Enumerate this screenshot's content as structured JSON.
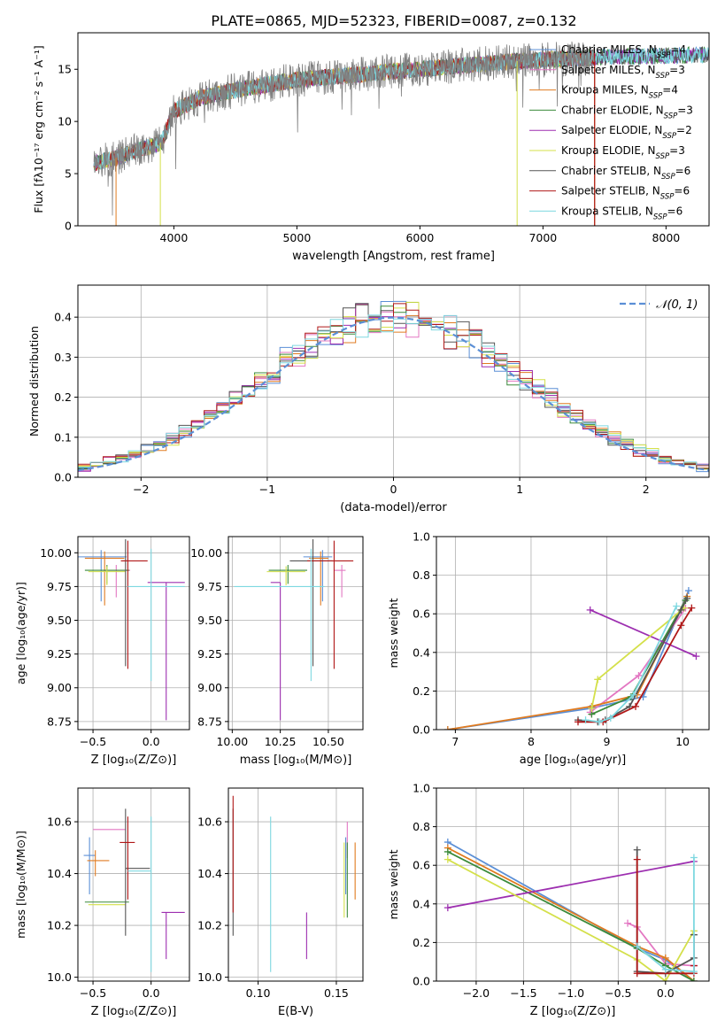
{
  "figure_title": "PLATE=0865, MJD=52323, FIBERID=0087, z=0.132",
  "colors": {
    "Chabrier MILES": "#5b8fd6",
    "Salpeter MILES": "#e377c2",
    "Kroupa MILES": "#e07b20",
    "Chabrier ELODIE": "#3a8a3a",
    "Salpeter ELODIE": "#9d2fb0",
    "Kroupa ELODIE": "#d4e04a",
    "Chabrier STELIB": "#555555",
    "Salpeter STELIB": "#b01818",
    "Kroupa STELIB": "#7ed8e0",
    "normal": "#5b8fd6",
    "grid": "#b0b0b0"
  },
  "chart_data": [
    {
      "id": "spectrum",
      "type": "line",
      "xlabel": "wavelength [Angstrom, rest frame]",
      "ylabel": "Flux [fλ10⁻¹⁷ erg cm⁻² s⁻¹ A⁻¹]",
      "xlim": [
        3220,
        8350
      ],
      "ylim": [
        0,
        18.5
      ],
      "xticks": [
        "4000",
        "5000",
        "6000",
        "7000",
        "8000"
      ],
      "yticks": [
        "0",
        "5",
        "10",
        "15"
      ],
      "grid": false,
      "legend_position": "top-right",
      "legend": [
        "Chabrier MILES, N_SSP=4",
        "Salpeter MILES, N_SSP=3",
        "Kroupa MILES, N_SSP=4",
        "Chabrier ELODIE, N_SSP=3",
        "Salpeter ELODIE, N_SSP=2",
        "Kroupa ELODIE, N_SSP=3",
        "Chabrier STELIB, N_SSP=6",
        "Salpeter STELIB, N_SSP=6",
        "Kroupa STELIB, N_SSP=6"
      ],
      "legend_display": [
        {
          "name": "Chabrier MILES",
          "n": "4"
        },
        {
          "name": "Salpeter MILES",
          "n": "3"
        },
        {
          "name": "Kroupa MILES",
          "n": "4"
        },
        {
          "name": "Chabrier ELODIE",
          "n": "3"
        },
        {
          "name": "Salpeter ELODIE",
          "n": "2"
        },
        {
          "name": "Kroupa ELODIE",
          "n": "3"
        },
        {
          "name": "Chabrier STELIB",
          "n": "6"
        },
        {
          "name": "Salpeter STELIB",
          "n": "6"
        },
        {
          "name": "Kroupa STELIB",
          "n": "6"
        }
      ],
      "continuum_x": [
        3350,
        3500,
        3700,
        3900,
        4000,
        4200,
        4500,
        4800,
        5000,
        5300,
        5600,
        6000,
        6400,
        6800,
        7200,
        7600,
        8000,
        8350
      ],
      "continuum_y": [
        6.0,
        6.4,
        7.2,
        8.0,
        11.0,
        12.2,
        13.0,
        13.6,
        14.0,
        14.3,
        14.6,
        15.0,
        15.4,
        15.8,
        16.0,
        16.2,
        16.3,
        16.4
      ],
      "model_start_x": [
        3350,
        3350,
        3350,
        3350,
        3350,
        3350,
        3350,
        3350,
        3350
      ],
      "model_end_x": [
        8350,
        7420,
        7420,
        8350,
        8350,
        7420,
        8350,
        7420,
        8350
      ],
      "data_start_x": 3350,
      "data_end_x": 7420,
      "cutoffs_x": [
        3530,
        3890,
        6790,
        7420
      ]
    },
    {
      "id": "residuals",
      "type": "line",
      "xlabel": "(data-model)/error",
      "ylabel": "Normed distribution",
      "xlim": [
        -2.5,
        2.5
      ],
      "ylim": [
        0,
        0.48
      ],
      "xticks": [
        "−2",
        "−1",
        "0",
        "1",
        "2"
      ],
      "yticks": [
        "0.0",
        "0.1",
        "0.2",
        "0.3",
        "0.4"
      ],
      "grid": true,
      "legend_position": "top-right",
      "legend": [
        "𝒩(0, 1)"
      ],
      "normal_mean": 0,
      "normal_sigma": 1,
      "hist_bin_width": 0.1
    },
    {
      "id": "age_vs_Z",
      "type": "scatter",
      "xlabel": "Z [log₁₀(Z/Z⊙)]",
      "ylabel": "age  [log₁₀(age/yr)]",
      "xlim": [
        -0.63,
        0.33
      ],
      "ylim": [
        8.69,
        10.12
      ],
      "xticks": [
        "−0.5",
        "0.0"
      ],
      "yticks": [
        "8.75",
        "9.00",
        "9.25",
        "9.50",
        "9.75",
        "10.00"
      ],
      "grid": true,
      "points": [
        {
          "model": "Chabrier MILES",
          "x": -0.43,
          "y": 9.97,
          "xerr": [
            0.22,
            0.22
          ],
          "yerr": [
            0.33,
            0.05
          ]
        },
        {
          "model": "Salpeter MILES",
          "x": -0.3,
          "y": 9.87,
          "xerr": [
            0.12,
            0.12
          ],
          "yerr": [
            0.2,
            0.04
          ]
        },
        {
          "model": "Kroupa MILES",
          "x": -0.4,
          "y": 9.96,
          "xerr": [
            0.17,
            0.17
          ],
          "yerr": [
            0.35,
            0.05
          ]
        },
        {
          "model": "Chabrier ELODIE",
          "x": -0.38,
          "y": 9.87,
          "xerr": [
            0.19,
            0.19
          ],
          "yerr": [
            0.1,
            0.04
          ]
        },
        {
          "model": "Salpeter ELODIE",
          "x": 0.13,
          "y": 9.78,
          "xerr": [
            0.16,
            0.16
          ],
          "yerr": [
            1.02,
            0.0
          ]
        },
        {
          "model": "Kroupa ELODIE",
          "x": -0.38,
          "y": 9.86,
          "xerr": [
            0.16,
            0.16
          ],
          "yerr": [
            0.1,
            0.04
          ]
        },
        {
          "model": "Chabrier STELIB",
          "x": -0.22,
          "y": 9.94,
          "xerr": [
            0.02,
            0.02
          ],
          "yerr": [
            0.78,
            0.16
          ]
        },
        {
          "model": "Salpeter STELIB",
          "x": -0.2,
          "y": 9.94,
          "xerr": [
            0.06,
            0.17
          ],
          "yerr": [
            0.8,
            0.15
          ]
        },
        {
          "model": "Kroupa STELIB",
          "x": 0.0,
          "y": 9.75,
          "xerr": [
            0.2,
            0.29
          ],
          "yerr": [
            0.7,
            0.28
          ]
        }
      ]
    },
    {
      "id": "age_vs_mass",
      "type": "scatter",
      "xlabel": "mass [log₁₀(M/M⊙)]",
      "ylabel": "",
      "xlim": [
        9.98,
        10.68
      ],
      "ylim": [
        8.69,
        10.12
      ],
      "xticks": [
        "10.00",
        "10.25",
        "10.50"
      ],
      "yticks": [
        "8.75",
        "9.00",
        "9.25",
        "9.50",
        "9.75",
        "10.00"
      ],
      "grid": true,
      "points": [
        {
          "model": "Chabrier MILES",
          "x": 10.47,
          "y": 9.97,
          "xerr": [
            0.1,
            0.05
          ],
          "yerr": [
            0.33,
            0.05
          ]
        },
        {
          "model": "Salpeter MILES",
          "x": 10.57,
          "y": 9.87,
          "xerr": [
            0.04,
            0.02
          ],
          "yerr": [
            0.2,
            0.04
          ]
        },
        {
          "model": "Kroupa MILES",
          "x": 10.46,
          "y": 9.96,
          "xerr": [
            0.06,
            0.04
          ],
          "yerr": [
            0.35,
            0.05
          ]
        },
        {
          "model": "Chabrier ELODIE",
          "x": 10.29,
          "y": 9.87,
          "xerr": [
            0.1,
            0.1
          ],
          "yerr": [
            0.1,
            0.04
          ]
        },
        {
          "model": "Salpeter ELODIE",
          "x": 10.25,
          "y": 9.78,
          "xerr": [
            0.05,
            0.0
          ],
          "yerr": [
            1.02,
            0.0
          ]
        },
        {
          "model": "Kroupa ELODIE",
          "x": 10.28,
          "y": 9.86,
          "xerr": [
            0.1,
            0.1
          ],
          "yerr": [
            0.1,
            0.04
          ]
        },
        {
          "model": "Chabrier STELIB",
          "x": 10.42,
          "y": 9.94,
          "xerr": [
            0.12,
            0.1
          ],
          "yerr": [
            0.78,
            0.16
          ]
        },
        {
          "model": "Salpeter STELIB",
          "x": 10.53,
          "y": 9.94,
          "xerr": [
            0.14,
            0.1
          ],
          "yerr": [
            0.8,
            0.15
          ]
        },
        {
          "model": "Kroupa STELIB",
          "x": 10.41,
          "y": 9.75,
          "xerr": [
            0.4,
            0.07
          ],
          "yerr": [
            0.7,
            0.28
          ]
        }
      ]
    },
    {
      "id": "massweight_vs_age",
      "type": "line",
      "xlabel": "age  [log₁₀(age/yr)]",
      "ylabel": "mass weight",
      "xlim": [
        6.75,
        10.35
      ],
      "ylim": [
        0,
        1.0
      ],
      "xticks": [
        "7",
        "8",
        "9",
        "10"
      ],
      "yticks": [
        "0.0",
        "0.2",
        "0.4",
        "0.6",
        "0.8",
        "1.0"
      ],
      "grid": true,
      "series": [
        {
          "name": "Chabrier MILES",
          "x": [
            6.9,
            8.78,
            9.48,
            10.08
          ],
          "y": [
            0.0,
            0.11,
            0.17,
            0.72
          ]
        },
        {
          "name": "Salpeter MILES",
          "x": [
            8.78,
            9.42,
            10.04
          ],
          "y": [
            0.09,
            0.28,
            0.63
          ]
        },
        {
          "name": "Kroupa MILES",
          "x": [
            6.9,
            8.8,
            9.4,
            10.06
          ],
          "y": [
            0.0,
            0.12,
            0.18,
            0.69
          ]
        },
        {
          "name": "Chabrier ELODIE",
          "x": [
            8.8,
            9.32,
            10.04
          ],
          "y": [
            0.08,
            0.17,
            0.67
          ]
        },
        {
          "name": "Salpeter ELODIE",
          "x": [
            8.78,
            10.18
          ],
          "y": [
            0.62,
            0.38
          ]
        },
        {
          "name": "Kroupa ELODIE",
          "x": [
            8.8,
            8.88,
            10.02
          ],
          "y": [
            0.11,
            0.26,
            0.63
          ]
        },
        {
          "name": "Chabrier STELIB",
          "x": [
            8.62,
            8.88,
            8.98,
            9.3,
            9.98,
            10.06
          ],
          "y": [
            0.05,
            0.04,
            0.05,
            0.12,
            0.62,
            0.68
          ]
        },
        {
          "name": "Salpeter STELIB",
          "x": [
            8.62,
            8.95,
            9.38,
            9.98,
            10.12
          ],
          "y": [
            0.04,
            0.04,
            0.12,
            0.54,
            0.63
          ]
        },
        {
          "name": "Kroupa STELIB",
          "x": [
            8.72,
            8.9,
            9.05,
            9.35,
            9.92
          ],
          "y": [
            0.05,
            0.04,
            0.06,
            0.18,
            0.64
          ]
        }
      ]
    },
    {
      "id": "mass_vs_Z",
      "type": "scatter",
      "xlabel": "Z [log₁₀(Z/Z⊙)]",
      "ylabel": "mass [log₁₀(M/M⊙)]",
      "xlim": [
        -0.63,
        0.33
      ],
      "ylim": [
        9.985,
        10.73
      ],
      "xticks": [
        "−0.5",
        "0.0"
      ],
      "yticks": [
        "10.0",
        "10.2",
        "10.4",
        "10.6"
      ],
      "grid": true,
      "points": [
        {
          "model": "Chabrier MILES",
          "x": -0.53,
          "y": 10.47,
          "xerr": [
            0.05,
            0.05
          ],
          "yerr": [
            0.15,
            0.07
          ]
        },
        {
          "model": "Salpeter MILES",
          "x": -0.5,
          "y": 10.57,
          "xerr": [
            0.0,
            0.28
          ],
          "yerr": [
            0.0,
            0.0
          ]
        },
        {
          "model": "Kroupa MILES",
          "x": -0.48,
          "y": 10.45,
          "xerr": [
            0.07,
            0.12
          ],
          "yerr": [
            0.06,
            0.04
          ]
        },
        {
          "model": "Chabrier ELODIE",
          "x": -0.38,
          "y": 10.29,
          "xerr": [
            0.19,
            0.19
          ],
          "yerr": [
            0.0,
            0.0
          ]
        },
        {
          "model": "Salpeter ELODIE",
          "x": 0.13,
          "y": 10.25,
          "xerr": [
            0.04,
            0.16
          ],
          "yerr": [
            0.18,
            0.0
          ]
        },
        {
          "model": "Kroupa ELODIE",
          "x": -0.38,
          "y": 10.28,
          "xerr": [
            0.16,
            0.16
          ],
          "yerr": [
            0.0,
            0.0
          ]
        },
        {
          "model": "Chabrier STELIB",
          "x": -0.22,
          "y": 10.42,
          "xerr": [
            0.0,
            0.21
          ],
          "yerr": [
            0.26,
            0.23
          ]
        },
        {
          "model": "Salpeter STELIB",
          "x": -0.2,
          "y": 10.52,
          "xerr": [
            0.07,
            0.06
          ],
          "yerr": [
            0.22,
            0.1
          ]
        },
        {
          "model": "Kroupa STELIB",
          "x": 0.0,
          "y": 10.41,
          "xerr": [
            0.2,
            0.0
          ],
          "yerr": [
            0.39,
            0.21
          ]
        }
      ]
    },
    {
      "id": "mass_vs_EBV",
      "type": "scatter",
      "xlabel": "E(B-V)",
      "ylabel": "",
      "xlim": [
        0.081,
        0.167
      ],
      "ylim": [
        9.985,
        10.73
      ],
      "xticks": [
        "0.10",
        "0.15"
      ],
      "yticks": [
        "10.0",
        "10.2",
        "10.4",
        "10.6"
      ],
      "grid": true,
      "points": [
        {
          "model": "Chabrier MILES",
          "x": 0.156,
          "y": 10.47,
          "xerr": [
            0,
            0
          ],
          "yerr": [
            0.15,
            0.07
          ]
        },
        {
          "model": "Salpeter MILES",
          "x": 0.157,
          "y": 10.57,
          "xerr": [
            0,
            0
          ],
          "yerr": [
            0.11,
            0.03
          ]
        },
        {
          "model": "Kroupa MILES",
          "x": 0.162,
          "y": 10.45,
          "xerr": [
            0,
            0
          ],
          "yerr": [
            0.15,
            0.07
          ]
        },
        {
          "model": "Chabrier ELODIE",
          "x": 0.157,
          "y": 10.29,
          "xerr": [
            0,
            0
          ],
          "yerr": [
            0.06,
            0.23
          ]
        },
        {
          "model": "Salpeter ELODIE",
          "x": 0.131,
          "y": 10.25,
          "xerr": [
            0,
            0
          ],
          "yerr": [
            0.18,
            0.0
          ]
        },
        {
          "model": "Kroupa ELODIE",
          "x": 0.155,
          "y": 10.28,
          "xerr": [
            0,
            0
          ],
          "yerr": [
            0.05,
            0.24
          ]
        },
        {
          "model": "Chabrier STELIB",
          "x": 0.084,
          "y": 10.42,
          "xerr": [
            0,
            0
          ],
          "yerr": [
            0.26,
            0.23
          ]
        },
        {
          "model": "Salpeter STELIB",
          "x": 0.084,
          "y": 10.52,
          "xerr": [
            0,
            0
          ],
          "yerr": [
            0.27,
            0.18
          ]
        },
        {
          "model": "Kroupa STELIB",
          "x": 0.108,
          "y": 10.41,
          "xerr": [
            0,
            0
          ],
          "yerr": [
            0.39,
            0.21
          ]
        }
      ]
    },
    {
      "id": "massweight_vs_Z",
      "type": "line",
      "xlabel": "Z [log₁₀(Z/Z⊙)]",
      "ylabel": "mass weight",
      "xlim": [
        -2.42,
        0.46
      ],
      "ylim": [
        0,
        1.0
      ],
      "xticks": [
        "−2.0",
        "−1.5",
        "−1.0",
        "−0.5",
        "0.0"
      ],
      "yticks": [
        "0.0",
        "0.2",
        "0.4",
        "0.6",
        "0.8",
        "1.0"
      ],
      "grid": true,
      "series": [
        {
          "name": "Chabrier MILES",
          "x": [
            -2.3,
            -0.3,
            0.0,
            0.3
          ],
          "y": [
            0.72,
            0.17,
            0.11,
            0.0
          ]
        },
        {
          "name": "Salpeter MILES",
          "x": [
            -0.4,
            -0.3,
            0.0,
            0.3
          ],
          "y": [
            0.3,
            0.28,
            0.09,
            0.08
          ]
        },
        {
          "name": "Kroupa MILES",
          "x": [
            -2.3,
            -0.3,
            0.0,
            0.3
          ],
          "y": [
            0.69,
            0.18,
            0.12,
            0.0
          ]
        },
        {
          "name": "Chabrier ELODIE",
          "x": [
            -2.3,
            -0.3,
            0.0,
            0.3
          ],
          "y": [
            0.67,
            0.17,
            0.08,
            0.0
          ]
        },
        {
          "name": "Salpeter ELODIE",
          "x": [
            -2.3,
            0.3
          ],
          "y": [
            0.38,
            0.62
          ]
        },
        {
          "name": "Kroupa ELODIE",
          "x": [
            -2.3,
            -0.3,
            0.0,
            0.3
          ],
          "y": [
            0.63,
            0.11,
            0.0,
            0.26
          ]
        },
        {
          "name": "Chabrier STELIB",
          "x": [
            -0.3,
            -0.3,
            0.0,
            0.3,
            0.3
          ],
          "y": [
            0.68,
            0.05,
            0.04,
            0.12,
            0.24
          ]
        },
        {
          "name": "Salpeter STELIB",
          "x": [
            -0.3,
            -0.3,
            0.3,
            0.3
          ],
          "y": [
            0.63,
            0.04,
            0.04,
            0.08
          ]
        },
        {
          "name": "Kroupa STELIB",
          "x": [
            -0.3,
            0.0,
            0.3,
            0.3
          ],
          "y": [
            0.18,
            0.06,
            0.05,
            0.64
          ]
        }
      ]
    }
  ]
}
